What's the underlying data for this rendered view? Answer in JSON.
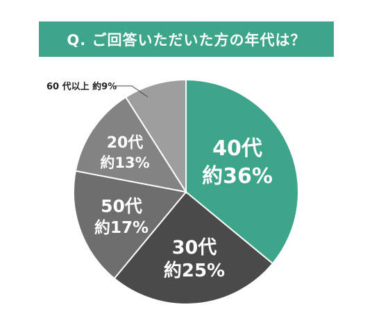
{
  "question": "Q. ご回答いただいた方の年代は？",
  "colors": {
    "banner": "#3da58a",
    "background": "#ffffff",
    "outline": "#ffffff",
    "leader_line": "#444444"
  },
  "chart_data": {
    "type": "pie",
    "title": "Q. ご回答いただいた方の年代は？",
    "start_angle_deg": 0,
    "direction": "clockwise",
    "slices": [
      {
        "category": "40代",
        "share": "約36%",
        "value": 36,
        "color": "#3da58a",
        "line1": "40代",
        "line2": "約36%"
      },
      {
        "category": "30代",
        "share": "約25%",
        "value": 25,
        "color": "#4a4a4a",
        "line1": "30代",
        "line2": "約25%"
      },
      {
        "category": "50代",
        "share": "約17%",
        "value": 17,
        "color": "#6e6e6e",
        "line1": "50代",
        "line2": "約17%"
      },
      {
        "category": "20代",
        "share": "約13%",
        "value": 13,
        "color": "#838383",
        "line1": "20代",
        "line2": "約13%"
      },
      {
        "category": "60代以上",
        "share": "約9%",
        "value": 9,
        "color": "#9e9e9e",
        "outside_label": "60 代以上 約9%"
      }
    ]
  }
}
